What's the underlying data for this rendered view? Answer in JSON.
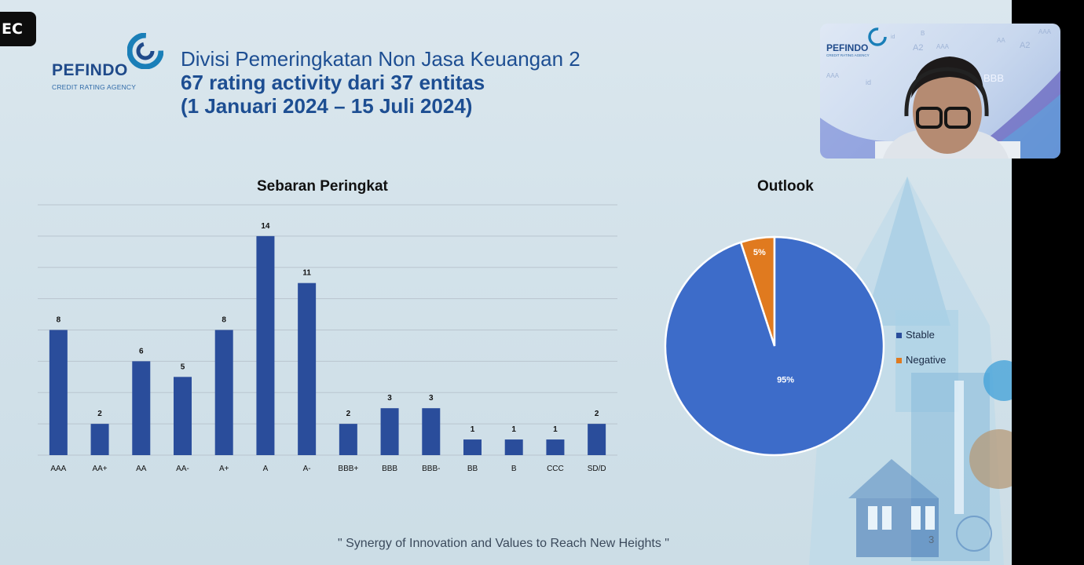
{
  "recording_tag": "EC",
  "logo": {
    "name": "PEFINDO",
    "tagline": "CREDIT RATING AGENCY"
  },
  "title": {
    "line1": "Divisi Pemeringkatan Non Jasa Keuangan 2",
    "line2": "67 rating activity dari 37 entitas",
    "line3": "(1 Januari 2024 – 15 Juli 2024)"
  },
  "colors": {
    "bar": "#2a4d9b",
    "stable": "#3d6cc9",
    "negative": "#e07a1f",
    "title": "#1d4e92"
  },
  "chart_data": [
    {
      "type": "bar",
      "title": "Sebaran Peringkat",
      "categories": [
        "AAA",
        "AA+",
        "AA",
        "AA-",
        "A+",
        "A",
        "A-",
        "BBB+",
        "BBB",
        "BBB-",
        "BB",
        "B",
        "CCC",
        "SD/D"
      ],
      "values": [
        8,
        2,
        6,
        5,
        8,
        14,
        11,
        2,
        3,
        3,
        1,
        1,
        1,
        2
      ],
      "ylim": [
        0,
        16
      ],
      "grid": true,
      "data_labels": true
    },
    {
      "type": "pie",
      "title": "Outlook",
      "labels": [
        "Stable",
        "Negative"
      ],
      "values": [
        95,
        5
      ],
      "data_labels": [
        "95%",
        "5%"
      ],
      "legend": "right"
    }
  ],
  "footer": "\" Synergy of Innovation and Values to Reach New Heights \"",
  "page_number": "3",
  "webcam": {
    "logo": "PEFINDO",
    "tagline": "CREDIT RATING AGENCY",
    "background_ratings": [
      "A2",
      "AAA",
      "B",
      "AA",
      "A2",
      "AAA",
      "BBB",
      "id",
      "id",
      "AAA"
    ]
  }
}
